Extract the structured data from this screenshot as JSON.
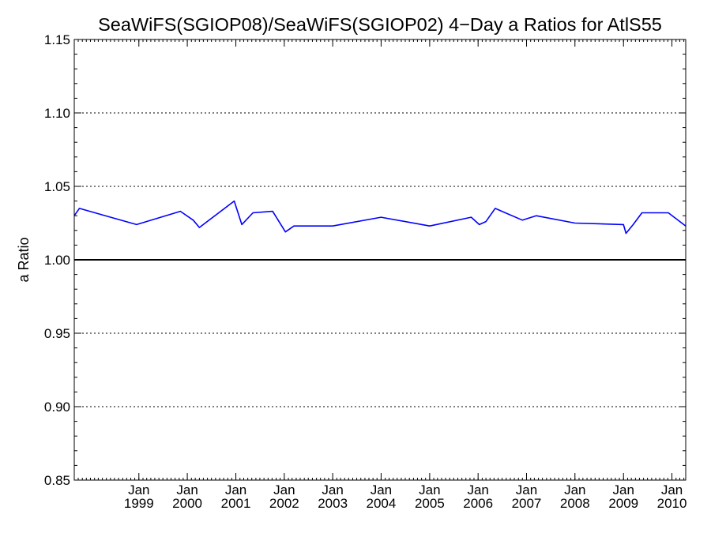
{
  "chart_data": {
    "type": "line",
    "title": "SeaWiFS(SGIOP08)/SeaWiFS(SGIOP02) 4−Day a Ratios for AtlS55",
    "xlabel": "",
    "ylabel": "a Ratio",
    "xlim": [
      "1997-09-01",
      "2010-04-15"
    ],
    "ylim": [
      0.85,
      1.15
    ],
    "y_ticks": [
      "0.85",
      "0.90",
      "0.95",
      "1.00",
      "1.05",
      "1.10",
      "1.15"
    ],
    "y_dotted_gridlines": [
      0.9,
      0.95,
      1.05,
      1.1
    ],
    "reference_line": 1.0,
    "x_ticks": [
      {
        "date": "1999-01-01",
        "month": "Jan",
        "year": "1999"
      },
      {
        "date": "2000-01-01",
        "month": "Jan",
        "year": "2000"
      },
      {
        "date": "2001-01-01",
        "month": "Jan",
        "year": "2001"
      },
      {
        "date": "2002-01-01",
        "month": "Jan",
        "year": "2002"
      },
      {
        "date": "2003-01-01",
        "month": "Jan",
        "year": "2003"
      },
      {
        "date": "2004-01-01",
        "month": "Jan",
        "year": "2004"
      },
      {
        "date": "2005-01-01",
        "month": "Jan",
        "year": "2005"
      },
      {
        "date": "2006-01-01",
        "month": "Jan",
        "year": "2006"
      },
      {
        "date": "2007-01-01",
        "month": "Jan",
        "year": "2007"
      },
      {
        "date": "2008-01-01",
        "month": "Jan",
        "year": "2008"
      },
      {
        "date": "2009-01-01",
        "month": "Jan",
        "year": "2009"
      },
      {
        "date": "2010-01-01",
        "month": "Jan",
        "year": "2010"
      }
    ],
    "series": [
      {
        "color": "#0000ff",
        "points": [
          [
            "1997-09-01",
            1.03
          ],
          [
            "1997-10-10",
            1.035
          ],
          [
            "1998-12-15",
            1.024
          ],
          [
            "1999-11-10",
            1.033
          ],
          [
            "2000-02-15",
            1.027
          ],
          [
            "2000-04-01",
            1.022
          ],
          [
            "2000-12-20",
            1.04
          ],
          [
            "2001-02-15",
            1.024
          ],
          [
            "2001-05-10",
            1.032
          ],
          [
            "2001-10-05",
            1.033
          ],
          [
            "2002-01-10",
            1.019
          ],
          [
            "2002-03-15",
            1.023
          ],
          [
            "2003-01-01",
            1.023
          ],
          [
            "2004-01-01",
            1.029
          ],
          [
            "2005-01-01",
            1.023
          ],
          [
            "2005-11-10",
            1.029
          ],
          [
            "2006-01-10",
            1.024
          ],
          [
            "2006-03-01",
            1.026
          ],
          [
            "2006-05-10",
            1.035
          ],
          [
            "2006-12-01",
            1.027
          ],
          [
            "2007-03-15",
            1.03
          ],
          [
            "2008-01-01",
            1.025
          ],
          [
            "2009-01-01",
            1.024
          ],
          [
            "2009-01-20",
            1.018
          ],
          [
            "2009-03-15",
            1.024
          ],
          [
            "2009-05-20",
            1.032
          ],
          [
            "2009-12-05",
            1.032
          ],
          [
            "2010-04-15",
            1.023
          ]
        ]
      }
    ]
  }
}
